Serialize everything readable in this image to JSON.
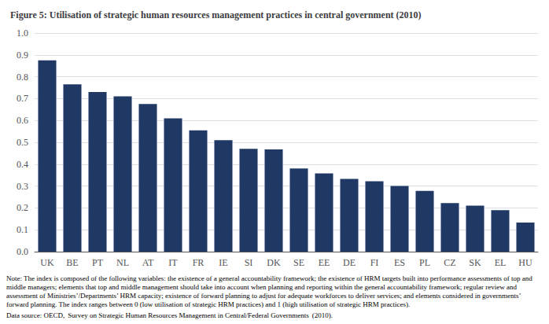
{
  "chart_data": {
    "type": "bar",
    "title": "Figure 5: Utilisation of strategic human resources management practices in central government (2010)",
    "categories": [
      "UK",
      "BE",
      "PT",
      "NL",
      "AT",
      "IT",
      "FR",
      "IE",
      "SI",
      "DK",
      "SE",
      "EE",
      "DE",
      "FI",
      "ES",
      "PL",
      "CZ",
      "SK",
      "EL",
      "HU"
    ],
    "values": [
      0.875,
      0.765,
      0.73,
      0.71,
      0.675,
      0.61,
      0.555,
      0.51,
      0.47,
      0.468,
      0.38,
      0.358,
      0.333,
      0.322,
      0.3,
      0.278,
      0.222,
      0.21,
      0.19,
      0.133
    ],
    "color": "#1F3864",
    "ylim": [
      0.0,
      1.0
    ],
    "yticks": [
      {
        "value": 0.0,
        "label": "0.0"
      },
      0.1,
      0.2,
      0.3,
      0.4,
      0.5,
      0.6,
      0.7,
      0.8,
      0.9,
      {
        "value": 1.0,
        "label": "1.0"
      }
    ],
    "grid": true,
    "annotations": [
      "Note: The index is composed of the following variables: the existence of a general accountability framework; the existence of HRM targets built into performance assessments of top and middle managers; elements that top and middle management should take into account when planning and reporting within the general accountability framework; regular review and assessment of Ministries’/Departments’ HRM capacity; existence of forward planning to adjust for adequate workforces to deliver services; and elements considered in governments’ forward planning. The index ranges between 0 (low utilisation of strategic HRM practices) and 1 (high utilisation of strategic HRM practices).",
      "Data source: OECD,  Survey on Strategic Human Resources Management in Central/Federal Governments  (2010)."
    ]
  }
}
